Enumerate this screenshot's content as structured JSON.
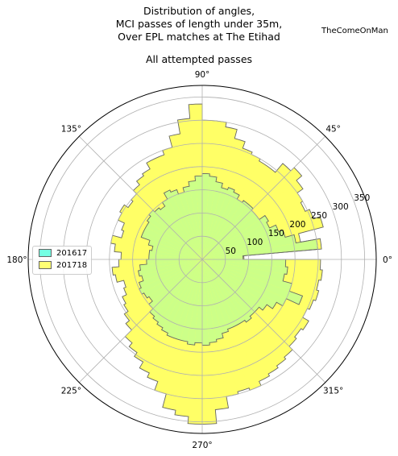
{
  "title_lines": [
    "Distribution of angles,",
    "MCI passes of length under 35m,",
    "Over EPL matches at The Etihad"
  ],
  "watermark": "TheComeOnMan",
  "subtitle": "All attempted passes",
  "colors": {
    "s201617": "#66ffe0",
    "s201718": "#ffff66",
    "overlap": "#ccff88",
    "edge": "#666666"
  },
  "chart_data": {
    "type": "polar-histogram",
    "title": "Distribution of angles, MCI passes of length under 35m, Over EPL matches at The Etihad",
    "subtitle": "All attempted passes",
    "angle_ticks": [
      "0°",
      "45°",
      "90°",
      "135°",
      "180°",
      "225°",
      "270°",
      "315°"
    ],
    "radial_ticks": [
      50,
      100,
      150,
      200,
      250,
      300,
      350
    ],
    "rmax": 375,
    "bin_width_deg": 5,
    "bin_centers_deg": [
      2.5,
      7.5,
      12.5,
      17.5,
      22.5,
      27.5,
      32.5,
      37.5,
      42.5,
      47.5,
      52.5,
      57.5,
      62.5,
      67.5,
      72.5,
      77.5,
      82.5,
      87.5,
      92.5,
      97.5,
      102.5,
      107.5,
      112.5,
      117.5,
      122.5,
      127.5,
      132.5,
      137.5,
      142.5,
      147.5,
      152.5,
      157.5,
      162.5,
      167.5,
      172.5,
      177.5,
      182.5,
      187.5,
      192.5,
      197.5,
      202.5,
      207.5,
      212.5,
      217.5,
      222.5,
      227.5,
      232.5,
      237.5,
      242.5,
      247.5,
      252.5,
      257.5,
      262.5,
      267.5,
      272.5,
      277.5,
      282.5,
      287.5,
      292.5,
      297.5,
      302.5,
      307.5,
      312.5,
      317.5,
      322.5,
      327.5,
      332.5,
      337.5,
      342.5,
      347.5,
      352.5,
      357.5
    ],
    "series": [
      {
        "name": "201617",
        "values": [
          88,
          250,
          205,
          185,
          175,
          160,
          165,
          150,
          150,
          155,
          155,
          150,
          160,
          165,
          160,
          170,
          180,
          185,
          180,
          170,
          160,
          150,
          160,
          165,
          150,
          140,
          145,
          150,
          145,
          140,
          140,
          140,
          120,
          110,
          115,
          115,
          120,
          135,
          140,
          135,
          145,
          150,
          145,
          140,
          150,
          160,
          165,
          170,
          175,
          180,
          180,
          180,
          185,
          180,
          185,
          180,
          175,
          165,
          160,
          160,
          160,
          165,
          160,
          160,
          170,
          185,
          200,
          230,
          200,
          180,
          185,
          180
        ]
      },
      {
        "name": "201718",
        "values": [
          90,
          258,
          215,
          270,
          255,
          245,
          250,
          265,
          280,
          270,
          245,
          245,
          250,
          255,
          270,
          290,
          300,
          300,
          335,
          305,
          275,
          250,
          240,
          240,
          225,
          220,
          210,
          200,
          195,
          205,
          200,
          185,
          180,
          200,
          190,
          175,
          180,
          195,
          190,
          175,
          180,
          190,
          195,
          205,
          215,
          235,
          245,
          255,
          270,
          280,
          300,
          330,
          340,
          355,
          355,
          325,
          300,
          295,
          300,
          290,
          285,
          280,
          275,
          265,
          260,
          265,
          250,
          255,
          260,
          255,
          260,
          255
        ]
      }
    ]
  },
  "legend": [
    {
      "key": "s201617",
      "label": "201617"
    },
    {
      "key": "s201718",
      "label": "201718"
    }
  ]
}
